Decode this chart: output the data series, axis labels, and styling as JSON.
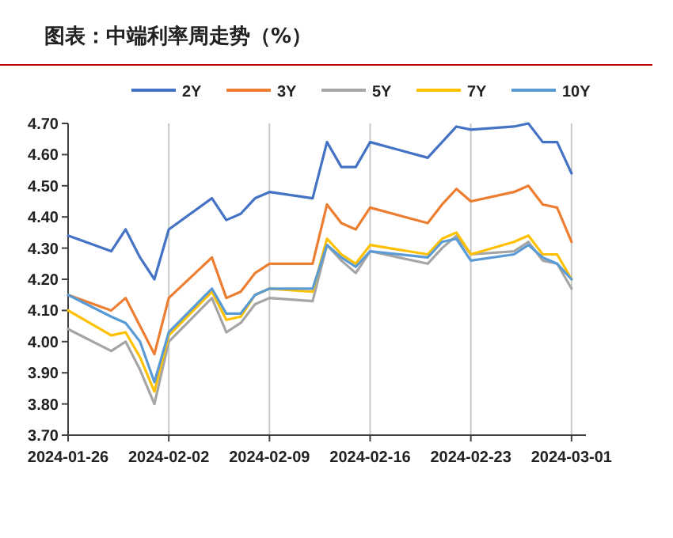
{
  "chart_data": {
    "type": "line",
    "title": "图表：中端利率周走势（%）",
    "x": [
      "2024-01-26",
      "2024-01-29",
      "2024-01-30",
      "2024-01-31",
      "2024-02-01",
      "2024-02-02",
      "2024-02-05",
      "2024-02-06",
      "2024-02-07",
      "2024-02-08",
      "2024-02-09",
      "2024-02-12",
      "2024-02-13",
      "2024-02-14",
      "2024-02-15",
      "2024-02-16",
      "2024-02-20",
      "2024-02-21",
      "2024-02-22",
      "2024-02-23",
      "2024-02-26",
      "2024-02-27",
      "2024-02-28",
      "2024-02-29",
      "2024-03-01"
    ],
    "series": [
      {
        "name": "2Y",
        "color": "#4472c4",
        "values": [
          4.34,
          4.29,
          4.36,
          4.27,
          4.2,
          4.36,
          4.46,
          4.39,
          4.41,
          4.46,
          4.48,
          4.46,
          4.64,
          4.56,
          4.56,
          4.64,
          4.59,
          4.64,
          4.69,
          4.68,
          4.69,
          4.7,
          4.64,
          4.64,
          4.54
        ]
      },
      {
        "name": "3Y",
        "color": "#ed7d31",
        "values": [
          4.15,
          4.1,
          4.14,
          4.05,
          3.96,
          4.14,
          4.27,
          4.14,
          4.16,
          4.22,
          4.25,
          4.25,
          4.44,
          4.38,
          4.36,
          4.43,
          4.38,
          4.44,
          4.49,
          4.45,
          4.48,
          4.5,
          4.44,
          4.43,
          4.32
        ]
      },
      {
        "name": "5Y",
        "color": "#a5a5a5",
        "values": [
          4.04,
          3.97,
          4.0,
          3.91,
          3.8,
          4.0,
          4.14,
          4.03,
          4.06,
          4.12,
          4.14,
          4.13,
          4.31,
          4.26,
          4.22,
          4.29,
          4.25,
          4.3,
          4.34,
          4.28,
          4.29,
          4.32,
          4.26,
          4.25,
          4.17
        ]
      },
      {
        "name": "7Y",
        "color": "#ffc000",
        "values": [
          4.1,
          4.02,
          4.03,
          3.95,
          3.84,
          4.02,
          4.16,
          4.07,
          4.08,
          4.15,
          4.17,
          4.16,
          4.33,
          4.28,
          4.25,
          4.31,
          4.28,
          4.33,
          4.35,
          4.28,
          4.32,
          4.34,
          4.28,
          4.28,
          4.2
        ]
      },
      {
        "name": "10Y",
        "color": "#5b9bd5",
        "values": [
          4.15,
          4.08,
          4.06,
          4.0,
          3.87,
          4.03,
          4.17,
          4.09,
          4.09,
          4.15,
          4.17,
          4.17,
          4.31,
          4.27,
          4.24,
          4.29,
          4.27,
          4.32,
          4.33,
          4.26,
          4.28,
          4.31,
          4.27,
          4.25,
          4.2
        ]
      }
    ],
    "xlim": [
      "2024-01-26",
      "2024-03-02"
    ],
    "xticks": [
      "2024-01-26",
      "2024-02-02",
      "2024-02-09",
      "2024-02-16",
      "2024-02-23",
      "2024-03-01"
    ],
    "ylim": [
      3.7,
      4.7
    ],
    "yticks": [
      {
        "value": 3.7,
        "label": "3.70"
      },
      {
        "value": 3.8,
        "label": "3.80"
      },
      {
        "value": 3.9,
        "label": "3.90"
      },
      {
        "value": 4.0,
        "label": "4.00"
      },
      {
        "value": 4.1,
        "label": "4.10"
      },
      {
        "value": 4.2,
        "label": "4.20"
      },
      {
        "value": 4.3,
        "label": "4.30"
      },
      {
        "value": 4.4,
        "label": "4.40"
      },
      {
        "value": 4.5,
        "label": "4.50"
      },
      {
        "value": 4.6,
        "label": "4.60"
      },
      {
        "value": 4.7,
        "label": "4.70"
      }
    ],
    "grid": "x",
    "legend": "top",
    "marker": "none",
    "line_style": "solid"
  }
}
